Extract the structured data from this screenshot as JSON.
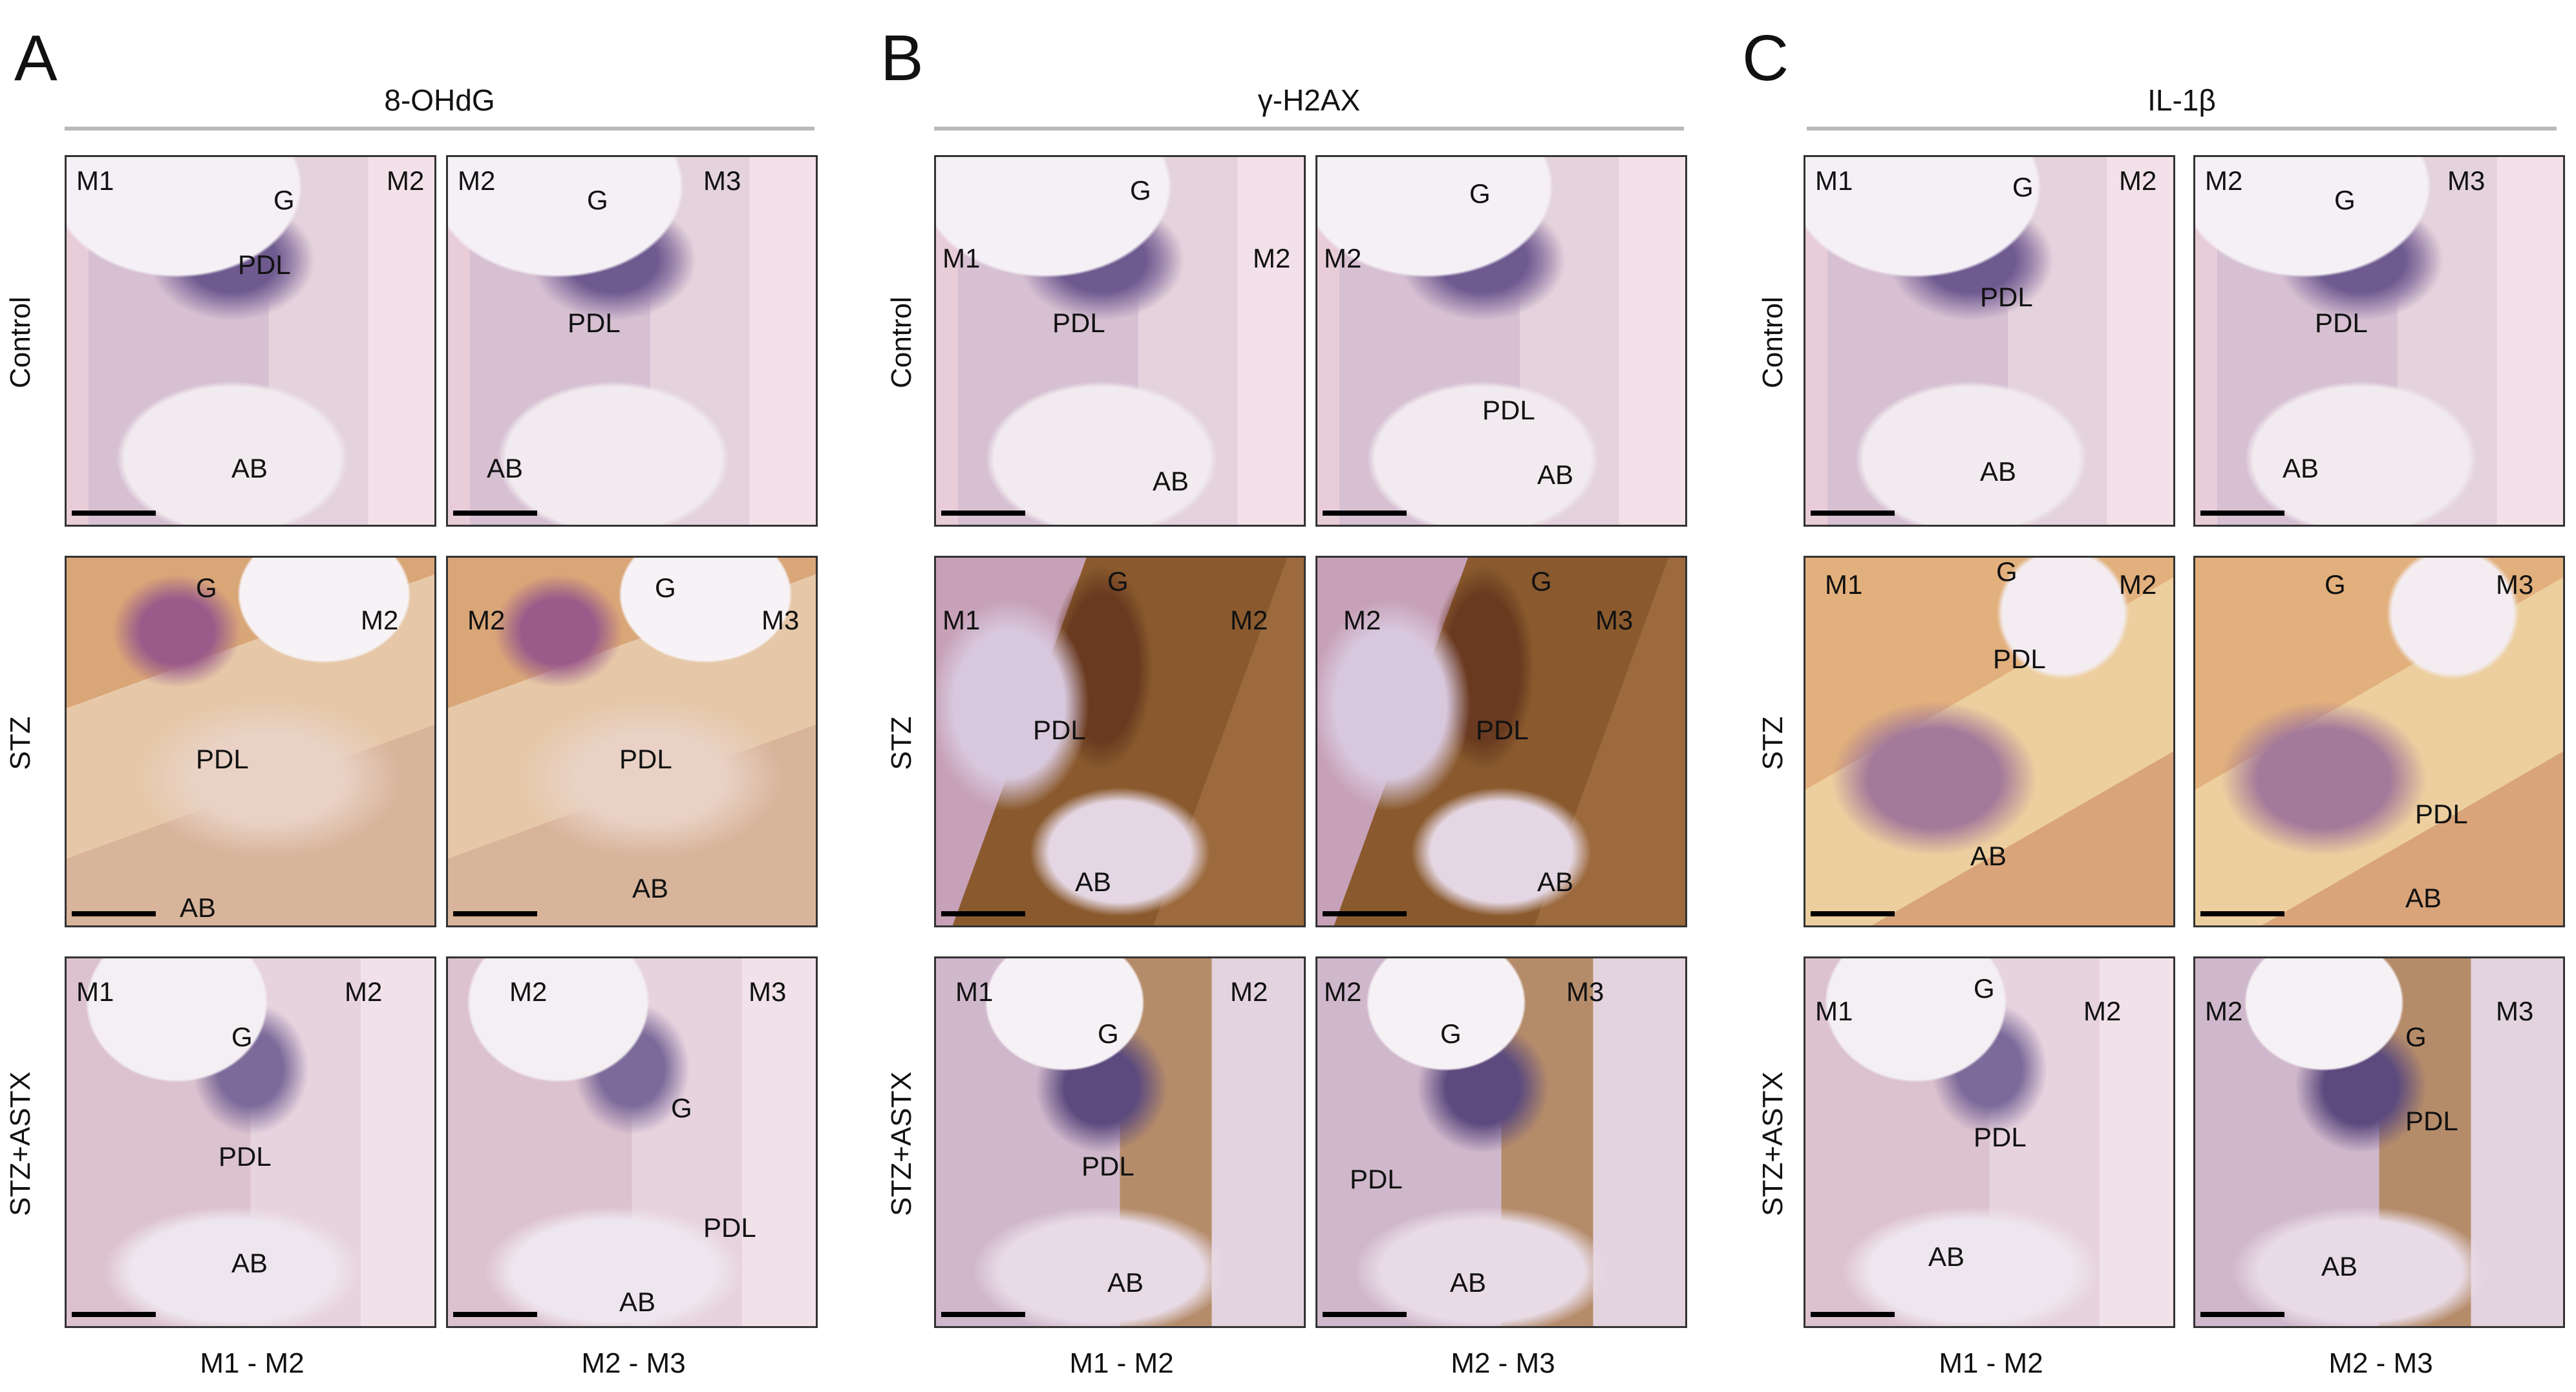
{
  "panels": [
    {
      "letter": "A",
      "marker": "8-OHdG",
      "columns": [
        "M1 - M2",
        "M2 - M3"
      ],
      "rows": [
        {
          "condition": "Control",
          "tiles": [
            {
              "labels": [
                "M1",
                "G",
                "M2",
                "PDL",
                "AB"
              ]
            },
            {
              "labels": [
                "M2",
                "G",
                "M3",
                "PDL",
                "AB"
              ]
            }
          ]
        },
        {
          "condition": "STZ",
          "tiles": [
            {
              "labels": [
                "G",
                "M2",
                "PDL",
                "AB"
              ]
            },
            {
              "labels": [
                "M2",
                "G",
                "M3",
                "PDL",
                "AB"
              ]
            }
          ]
        },
        {
          "condition": "STZ+ASTX",
          "tiles": [
            {
              "labels": [
                "M1",
                "M2",
                "G",
                "PDL",
                "AB"
              ]
            },
            {
              "labels": [
                "M2",
                "M3",
                "G",
                "PDL",
                "AB"
              ]
            }
          ]
        }
      ]
    },
    {
      "letter": "B",
      "marker": "γ-H2AX",
      "columns": [
        "M1 - M2",
        "M2 - M3"
      ],
      "rows": [
        {
          "condition": "Control",
          "tiles": [
            {
              "labels": [
                "G",
                "M1",
                "M2",
                "PDL",
                "AB"
              ]
            },
            {
              "labels": [
                "G",
                "M2",
                "PDL",
                "AB"
              ]
            }
          ]
        },
        {
          "condition": "STZ",
          "tiles": [
            {
              "labels": [
                "G",
                "M1",
                "M2",
                "PDL",
                "AB"
              ]
            },
            {
              "labels": [
                "G",
                "M2",
                "M3",
                "PDL",
                "AB"
              ]
            }
          ]
        },
        {
          "condition": "STZ+ASTX",
          "tiles": [
            {
              "labels": [
                "M1",
                "M2",
                "G",
                "PDL",
                "AB"
              ]
            },
            {
              "labels": [
                "M2",
                "G",
                "M3",
                "PDL",
                "AB"
              ]
            }
          ]
        }
      ]
    },
    {
      "letter": "C",
      "marker": "IL-1β",
      "columns": [
        "M1 - M2",
        "M2 - M3"
      ],
      "rows": [
        {
          "condition": "Control",
          "tiles": [
            {
              "labels": [
                "M1",
                "G",
                "M2",
                "PDL",
                "AB"
              ]
            },
            {
              "labels": [
                "M2",
                "G",
                "M3",
                "PDL",
                "AB"
              ]
            }
          ]
        },
        {
          "condition": "STZ",
          "tiles": [
            {
              "labels": [
                "M1",
                "G",
                "M2",
                "PDL",
                "AB"
              ]
            },
            {
              "labels": [
                "G",
                "M3",
                "PDL",
                "AB"
              ]
            }
          ]
        },
        {
          "condition": "STZ+ASTX",
          "tiles": [
            {
              "labels": [
                "G",
                "M1",
                "M2",
                "PDL",
                "AB"
              ]
            },
            {
              "labels": [
                "M2",
                "G",
                "M3",
                "PDL",
                "AB"
              ]
            }
          ]
        }
      ]
    }
  ]
}
